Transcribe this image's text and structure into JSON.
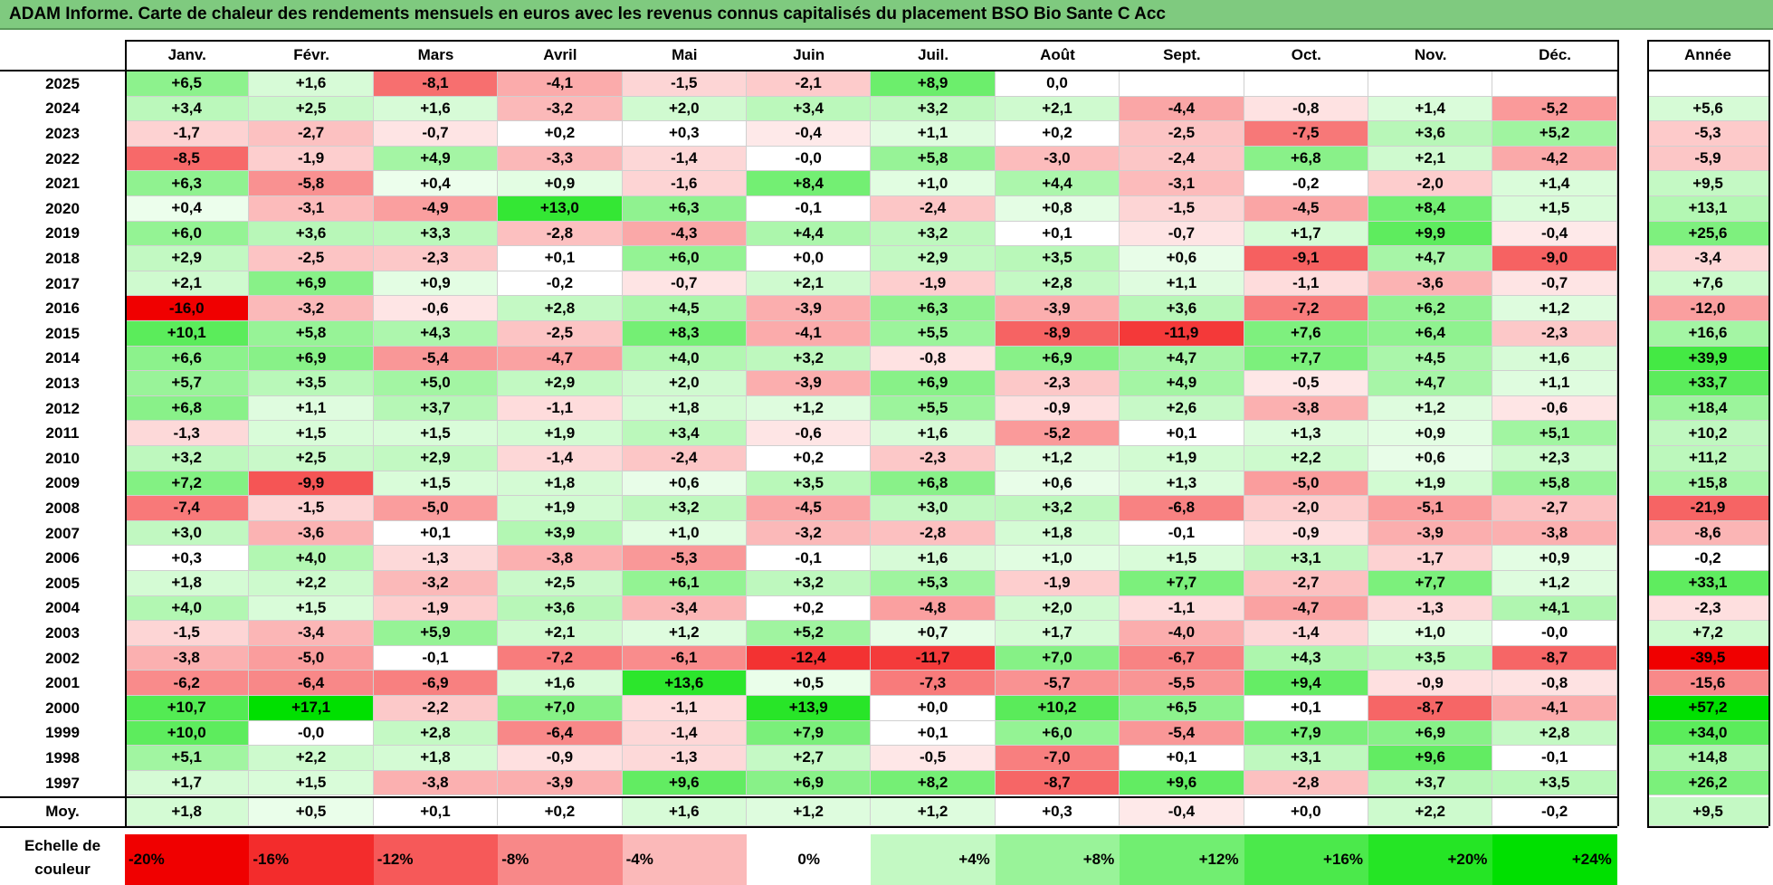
{
  "title": "ADAM Informe. Carte de chaleur des rendements mensuels en euros avec les revenus connus capitalisés du placement BSO Bio Sante C Acc",
  "chart_data": {
    "type": "heatmap",
    "months": [
      "Janv.",
      "Févr.",
      "Mars",
      "Avril",
      "Mai",
      "Juin",
      "Juil.",
      "Août",
      "Sept.",
      "Oct.",
      "Nov.",
      "Déc."
    ],
    "year_header": "Année",
    "rows": [
      {
        "year": "2025",
        "months": [
          "+6,5",
          "+1,6",
          "-8,1",
          "-4,1",
          "-1,5",
          "-2,1",
          "+8,9",
          "0,0",
          "",
          "",
          "",
          ""
        ],
        "annual": ""
      },
      {
        "year": "2024",
        "months": [
          "+3,4",
          "+2,5",
          "+1,6",
          "-3,2",
          "+2,0",
          "+3,4",
          "+3,2",
          "+2,1",
          "-4,4",
          "-0,8",
          "+1,4",
          "-5,2"
        ],
        "annual": "+5,6"
      },
      {
        "year": "2023",
        "months": [
          "-1,7",
          "-2,7",
          "-0,7",
          "+0,2",
          "+0,3",
          "-0,4",
          "+1,1",
          "+0,2",
          "-2,5",
          "-7,5",
          "+3,6",
          "+5,2"
        ],
        "annual": "-5,3"
      },
      {
        "year": "2022",
        "months": [
          "-8,5",
          "-1,9",
          "+4,9",
          "-3,3",
          "-1,4",
          "-0,0",
          "+5,8",
          "-3,0",
          "-2,4",
          "+6,8",
          "+2,1",
          "-4,2"
        ],
        "annual": "-5,9"
      },
      {
        "year": "2021",
        "months": [
          "+6,3",
          "-5,8",
          "+0,4",
          "+0,9",
          "-1,6",
          "+8,4",
          "+1,0",
          "+4,4",
          "-3,1",
          "-0,2",
          "-2,0",
          "+1,4"
        ],
        "annual": "+9,5"
      },
      {
        "year": "2020",
        "months": [
          "+0,4",
          "-3,1",
          "-4,9",
          "+13,0",
          "+6,3",
          "-0,1",
          "-2,4",
          "+0,8",
          "-1,5",
          "-4,5",
          "+8,4",
          "+1,5"
        ],
        "annual": "+13,1"
      },
      {
        "year": "2019",
        "months": [
          "+6,0",
          "+3,6",
          "+3,3",
          "-2,8",
          "-4,3",
          "+4,4",
          "+3,2",
          "+0,1",
          "-0,7",
          "+1,7",
          "+9,9",
          "-0,4"
        ],
        "annual": "+25,6"
      },
      {
        "year": "2018",
        "months": [
          "+2,9",
          "-2,5",
          "-2,3",
          "+0,1",
          "+6,0",
          "+0,0",
          "+2,9",
          "+3,5",
          "+0,6",
          "-9,1",
          "+4,7",
          "-9,0"
        ],
        "annual": "-3,4"
      },
      {
        "year": "2017",
        "months": [
          "+2,1",
          "+6,9",
          "+0,9",
          "-0,2",
          "-0,7",
          "+2,1",
          "-1,9",
          "+2,8",
          "+1,1",
          "-1,1",
          "-3,6",
          "-0,7"
        ],
        "annual": "+7,6"
      },
      {
        "year": "2016",
        "months": [
          "-16,0",
          "-3,2",
          "-0,6",
          "+2,8",
          "+4,5",
          "-3,9",
          "+6,3",
          "-3,9",
          "+3,6",
          "-7,2",
          "+6,2",
          "+1,2"
        ],
        "annual": "-12,0"
      },
      {
        "year": "2015",
        "months": [
          "+10,1",
          "+5,8",
          "+4,3",
          "-2,5",
          "+8,3",
          "-4,1",
          "+5,5",
          "-8,9",
          "-11,9",
          "+7,6",
          "+6,4",
          "-2,3"
        ],
        "annual": "+16,6"
      },
      {
        "year": "2014",
        "months": [
          "+6,6",
          "+6,9",
          "-5,4",
          "-4,7",
          "+4,0",
          "+3,2",
          "-0,8",
          "+6,9",
          "+4,7",
          "+7,7",
          "+4,5",
          "+1,6"
        ],
        "annual": "+39,9"
      },
      {
        "year": "2013",
        "months": [
          "+5,7",
          "+3,5",
          "+5,0",
          "+2,9",
          "+2,0",
          "-3,9",
          "+6,9",
          "-2,3",
          "+4,9",
          "-0,5",
          "+4,7",
          "+1,1"
        ],
        "annual": "+33,7"
      },
      {
        "year": "2012",
        "months": [
          "+6,8",
          "+1,1",
          "+3,7",
          "-1,1",
          "+1,8",
          "+1,2",
          "+5,5",
          "-0,9",
          "+2,6",
          "-3,8",
          "+1,2",
          "-0,6"
        ],
        "annual": "+18,4"
      },
      {
        "year": "2011",
        "months": [
          "-1,3",
          "+1,5",
          "+1,5",
          "+1,9",
          "+3,4",
          "-0,6",
          "+1,6",
          "-5,2",
          "+0,1",
          "+1,3",
          "+0,9",
          "+5,1"
        ],
        "annual": "+10,2"
      },
      {
        "year": "2010",
        "months": [
          "+3,2",
          "+2,5",
          "+2,9",
          "-1,4",
          "-2,4",
          "+0,2",
          "-2,3",
          "+1,2",
          "+1,9",
          "+2,2",
          "+0,6",
          "+2,3"
        ],
        "annual": "+11,2"
      },
      {
        "year": "2009",
        "months": [
          "+7,2",
          "-9,9",
          "+1,5",
          "+1,8",
          "+0,6",
          "+3,5",
          "+6,8",
          "+0,6",
          "+1,3",
          "-5,0",
          "+1,9",
          "+5,8"
        ],
        "annual": "+15,8"
      },
      {
        "year": "2008",
        "months": [
          "-7,4",
          "-1,5",
          "-5,0",
          "+1,9",
          "+3,2",
          "-4,5",
          "+3,0",
          "+3,2",
          "-6,8",
          "-2,0",
          "-5,1",
          "-2,7"
        ],
        "annual": "-21,9"
      },
      {
        "year": "2007",
        "months": [
          "+3,0",
          "-3,6",
          "+0,1",
          "+3,9",
          "+1,0",
          "-3,2",
          "-2,8",
          "+1,8",
          "-0,1",
          "-0,9",
          "-3,9",
          "-3,8"
        ],
        "annual": "-8,6"
      },
      {
        "year": "2006",
        "months": [
          "+0,3",
          "+4,0",
          "-1,3",
          "-3,8",
          "-5,3",
          "-0,1",
          "+1,6",
          "+1,0",
          "+1,5",
          "+3,1",
          "-1,7",
          "+0,9"
        ],
        "annual": "-0,2"
      },
      {
        "year": "2005",
        "months": [
          "+1,8",
          "+2,2",
          "-3,2",
          "+2,5",
          "+6,1",
          "+3,2",
          "+5,3",
          "-1,9",
          "+7,7",
          "-2,7",
          "+7,7",
          "+1,2"
        ],
        "annual": "+33,1"
      },
      {
        "year": "2004",
        "months": [
          "+4,0",
          "+1,5",
          "-1,9",
          "+3,6",
          "-3,4",
          "+0,2",
          "-4,8",
          "+2,0",
          "-1,1",
          "-4,7",
          "-1,3",
          "+4,1"
        ],
        "annual": "-2,3"
      },
      {
        "year": "2003",
        "months": [
          "-1,5",
          "-3,4",
          "+5,9",
          "+2,1",
          "+1,2",
          "+5,2",
          "+0,7",
          "+1,7",
          "-4,0",
          "-1,4",
          "+1,0",
          "-0,0"
        ],
        "annual": "+7,2"
      },
      {
        "year": "2002",
        "months": [
          "-3,8",
          "-5,0",
          "-0,1",
          "-7,2",
          "-6,1",
          "-12,4",
          "-11,7",
          "+7,0",
          "-6,7",
          "+4,3",
          "+3,5",
          "-8,7"
        ],
        "annual": "-39,5"
      },
      {
        "year": "2001",
        "months": [
          "-6,2",
          "-6,4",
          "-6,9",
          "+1,6",
          "+13,6",
          "+0,5",
          "-7,3",
          "-5,7",
          "-5,5",
          "+9,4",
          "-0,9",
          "-0,8"
        ],
        "annual": "-15,6"
      },
      {
        "year": "2000",
        "months": [
          "+10,7",
          "+17,1",
          "-2,2",
          "+7,0",
          "-1,1",
          "+13,9",
          "+0,0",
          "+10,2",
          "+6,5",
          "+0,1",
          "-8,7",
          "-4,1"
        ],
        "annual": "+57,2"
      },
      {
        "year": "1999",
        "months": [
          "+10,0",
          "-0,0",
          "+2,8",
          "-6,4",
          "-1,4",
          "+7,9",
          "+0,1",
          "+6,0",
          "-5,4",
          "+7,9",
          "+6,9",
          "+2,8"
        ],
        "annual": "+34,0"
      },
      {
        "year": "1998",
        "months": [
          "+5,1",
          "+2,2",
          "+1,8",
          "-0,9",
          "-1,3",
          "+2,7",
          "-0,5",
          "-7,0",
          "+0,1",
          "+3,1",
          "+9,6",
          "-0,1"
        ],
        "annual": "+14,8"
      },
      {
        "year": "1997",
        "months": [
          "+1,7",
          "+1,5",
          "-3,8",
          "-3,9",
          "+9,6",
          "+6,9",
          "+8,2",
          "-8,7",
          "+9,6",
          "-2,8",
          "+3,7",
          "+3,5"
        ],
        "annual": "+26,2"
      }
    ],
    "average": {
      "label": "Moy.",
      "months": [
        "+1,8",
        "+0,5",
        "+0,1",
        "+0,2",
        "+1,6",
        "+1,2",
        "+1,2",
        "+0,3",
        "-0,4",
        "+0,0",
        "+2,2",
        "-0,2"
      ],
      "annual": "+9,5"
    },
    "scale": {
      "label": "Echelle de couleur",
      "steps": [
        "-20%",
        "-16%",
        "-12%",
        "-8%",
        "-4%",
        "0%",
        "+4%",
        "+8%",
        "+12%",
        "+16%",
        "+20%",
        "+24%"
      ]
    },
    "colors": {
      "negative_max": "#f00000",
      "positive_max": "#00e000",
      "neutral": "#ffffff",
      "title_bg": "#7fca7f"
    }
  }
}
